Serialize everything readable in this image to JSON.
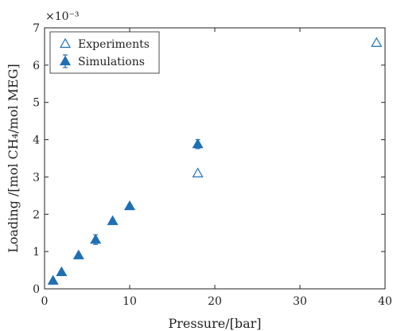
{
  "chart_data": {
    "type": "scatter",
    "xlabel": "Pressure/[bar]",
    "ylabel": "Loading /[mol CH₄/mol MEG]",
    "y_exponent": "×10⁻³",
    "xlim": [
      0,
      40
    ],
    "ylim": [
      0,
      7
    ],
    "xticks": [
      0,
      10,
      20,
      30,
      40
    ],
    "yticks": [
      0,
      1,
      2,
      3,
      4,
      5,
      6,
      7
    ],
    "grid": false,
    "legend_position": "top-left",
    "color": "#1f6fb4",
    "series": [
      {
        "name": "Experiments",
        "marker": "open-triangle",
        "points": [
          {
            "x": 18,
            "y": 3.1
          },
          {
            "x": 39,
            "y": 6.6
          }
        ]
      },
      {
        "name": "Simulations",
        "marker": "filled-triangle",
        "error_bars": true,
        "points": [
          {
            "x": 1,
            "y": 0.22,
            "err": 0.03
          },
          {
            "x": 2,
            "y": 0.45,
            "err": 0.03
          },
          {
            "x": 4,
            "y": 0.9,
            "err": 0.03
          },
          {
            "x": 6,
            "y": 1.32,
            "err": 0.13
          },
          {
            "x": 8,
            "y": 1.82,
            "err": 0.05
          },
          {
            "x": 10,
            "y": 2.22,
            "err": 0.04
          },
          {
            "x": 18,
            "y": 3.88,
            "err": 0.12
          }
        ]
      }
    ]
  }
}
